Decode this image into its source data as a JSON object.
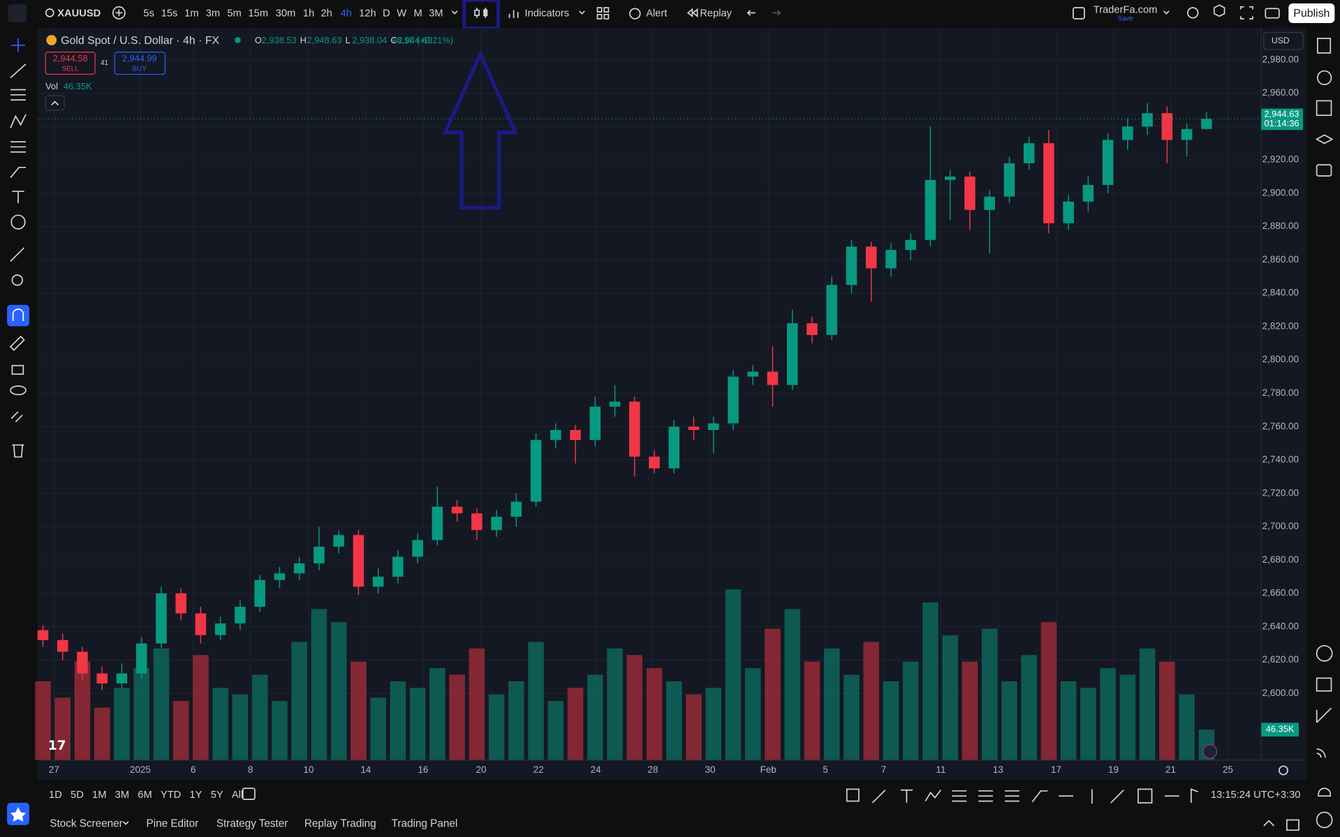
{
  "top_bar": {
    "symbol": "XAUUSD",
    "intervals": [
      "5s",
      "15s",
      "1m",
      "3m",
      "5m",
      "15m",
      "30m",
      "1h",
      "2h",
      "4h",
      "12h",
      "D",
      "W",
      "M",
      "3M"
    ],
    "active_interval": "4h",
    "indicators": "Indicators",
    "alert": "Alert",
    "replay": "Replay",
    "account": "TraderFa.com",
    "account_status": "Save",
    "publish": "Publish"
  },
  "legend": {
    "title": "Gold Spot / U.S. Dollar · 4h · FX",
    "ohlc": [
      {
        "label": "O",
        "value": "2,938.53"
      },
      {
        "label": "H",
        "value": "2,948.63"
      },
      {
        "label": "L",
        "value": "2,938.04"
      },
      {
        "label": "C",
        "value": "2,944.63"
      }
    ],
    "change": "+6.10 (+0.21%)",
    "sell_price": "2,944.58",
    "sell": "SELL",
    "spread": "41",
    "buy_price": "2,944.99",
    "buy": "BUY",
    "volume_name": "Vol",
    "volume": "46.35K"
  },
  "chart": {
    "type": "candlestick",
    "currency": "USD",
    "ylim": [
      2560,
      2999
    ],
    "yticks": [
      {
        "value": 2600,
        "label": "2,600.00"
      },
      {
        "value": 2620,
        "label": "2,620.00"
      },
      {
        "value": 2640,
        "label": "2,640.00"
      },
      {
        "value": 2660,
        "label": "2,660.00"
      },
      {
        "value": 2680,
        "label": "2,680.00"
      },
      {
        "value": 2700,
        "label": "2,700.00"
      },
      {
        "value": 2720,
        "label": "2,720.00"
      },
      {
        "value": 2740,
        "label": "2,740.00"
      },
      {
        "value": 2760,
        "label": "2,760.00"
      },
      {
        "value": 2780,
        "label": "2,780.00"
      },
      {
        "value": 2800,
        "label": "2,800.00"
      },
      {
        "value": 2820,
        "label": "2,820.00"
      },
      {
        "value": 2840,
        "label": "2,840.00"
      },
      {
        "value": 2860,
        "label": "2,860.00"
      },
      {
        "value": 2880,
        "label": "2,880.00"
      },
      {
        "value": 2900,
        "label": "2,900.00"
      },
      {
        "value": 2920,
        "label": "2,920.00"
      },
      {
        "value": 2940,
        "label": "2,940.00"
      },
      {
        "value": 2960,
        "label": "2,960.00"
      },
      {
        "value": 2980,
        "label": "2,980.00"
      }
    ],
    "candles": [
      [
        2638,
        2641,
        2628,
        2632
      ],
      [
        2632,
        2636,
        2620,
        2625
      ],
      [
        2625,
        2628,
        2608,
        2612
      ],
      [
        2612,
        2616,
        2602,
        2606
      ],
      [
        2606,
        2618,
        2603,
        2612
      ],
      [
        2612,
        2634,
        2609,
        2630
      ],
      [
        2630,
        2664,
        2627,
        2660
      ],
      [
        2660,
        2663,
        2644,
        2648
      ],
      [
        2648,
        2652,
        2630,
        2635
      ],
      [
        2635,
        2646,
        2632,
        2642
      ],
      [
        2642,
        2656,
        2638,
        2652
      ],
      [
        2652,
        2671,
        2649,
        2668
      ],
      [
        2668,
        2676,
        2663,
        2672
      ],
      [
        2672,
        2682,
        2668,
        2678
      ],
      [
        2678,
        2700,
        2674,
        2688
      ],
      [
        2688,
        2698,
        2684,
        2695
      ],
      [
        2695,
        2698,
        2659,
        2664
      ],
      [
        2664,
        2675,
        2660,
        2670
      ],
      [
        2670,
        2686,
        2666,
        2682
      ],
      [
        2682,
        2696,
        2678,
        2692
      ],
      [
        2692,
        2724,
        2689,
        2712
      ],
      [
        2712,
        2716,
        2703,
        2708
      ],
      [
        2708,
        2711,
        2692,
        2698
      ],
      [
        2698,
        2710,
        2694,
        2706
      ],
      [
        2706,
        2720,
        2700,
        2715
      ],
      [
        2715,
        2756,
        2712,
        2752
      ],
      [
        2752,
        2762,
        2747,
        2758
      ],
      [
        2758,
        2761,
        2738,
        2752
      ],
      [
        2752,
        2778,
        2748,
        2772
      ],
      [
        2772,
        2785,
        2766,
        2775
      ],
      [
        2775,
        2778,
        2730,
        2742
      ],
      [
        2742,
        2746,
        2732,
        2735
      ],
      [
        2735,
        2764,
        2732,
        2760
      ],
      [
        2760,
        2766,
        2752,
        2758
      ],
      [
        2758,
        2766,
        2744,
        2762
      ],
      [
        2762,
        2794,
        2758,
        2790
      ],
      [
        2790,
        2797,
        2785,
        2793
      ],
      [
        2793,
        2808,
        2772,
        2785
      ],
      [
        2785,
        2830,
        2782,
        2822
      ],
      [
        2822,
        2826,
        2810,
        2815
      ],
      [
        2815,
        2850,
        2812,
        2845
      ],
      [
        2845,
        2872,
        2840,
        2868
      ],
      [
        2868,
        2871,
        2835,
        2855
      ],
      [
        2855,
        2870,
        2850,
        2866
      ],
      [
        2866,
        2876,
        2860,
        2872
      ],
      [
        2872,
        2940,
        2868,
        2908
      ],
      [
        2908,
        2914,
        2884,
        2910
      ],
      [
        2910,
        2913,
        2878,
        2890
      ],
      [
        2890,
        2902,
        2864,
        2898
      ],
      [
        2898,
        2922,
        2894,
        2918
      ],
      [
        2918,
        2934,
        2914,
        2930
      ],
      [
        2930,
        2938,
        2876,
        2882
      ],
      [
        2882,
        2899,
        2878,
        2895
      ],
      [
        2895,
        2910,
        2889,
        2905
      ],
      [
        2905,
        2936,
        2900,
        2932
      ],
      [
        2932,
        2945,
        2926,
        2940
      ],
      [
        2940,
        2954,
        2935,
        2948
      ],
      [
        2948,
        2952,
        2918,
        2932
      ],
      [
        2932,
        2942,
        2922,
        2938.53
      ],
      [
        2938.53,
        2948.63,
        2938.04,
        2944.63
      ]
    ],
    "volumes": [
      120,
      95,
      150,
      80,
      110,
      140,
      170,
      90,
      160,
      110,
      100,
      130,
      90,
      180,
      230,
      210,
      150,
      95,
      120,
      110,
      140,
      130,
      170,
      100,
      120,
      180,
      90,
      110,
      130,
      170,
      160,
      140,
      120,
      100,
      110,
      260,
      140,
      200,
      230,
      150,
      170,
      130,
      180,
      120,
      150,
      240,
      190,
      150,
      200,
      120,
      160,
      210,
      120,
      110,
      140,
      130,
      170,
      150,
      100,
      46.35
    ],
    "up_color": "#089981",
    "down_color": "#f23645",
    "last_price": 2944.63,
    "last_price_label": "2,944.63",
    "countdown": "01:14:36",
    "volume_label": "46.35K",
    "x_labels": [
      "27",
      "2025",
      "6",
      "8",
      "10",
      "14",
      "16",
      "20",
      "22",
      "24",
      "28",
      "30",
      "Feb",
      "5",
      "7",
      "11",
      "13",
      "17",
      "19",
      "21",
      "25"
    ]
  },
  "bottom_bar": {
    "ranges": [
      "1D",
      "5D",
      "1M",
      "3M",
      "6M",
      "YTD",
      "1Y",
      "5Y",
      "All"
    ],
    "clock": "13:15:24 UTC+3:30",
    "tabs": [
      "Stock Screener",
      "Pine Editor",
      "Strategy Tester",
      "Replay Trading",
      "Trading Panel"
    ]
  }
}
